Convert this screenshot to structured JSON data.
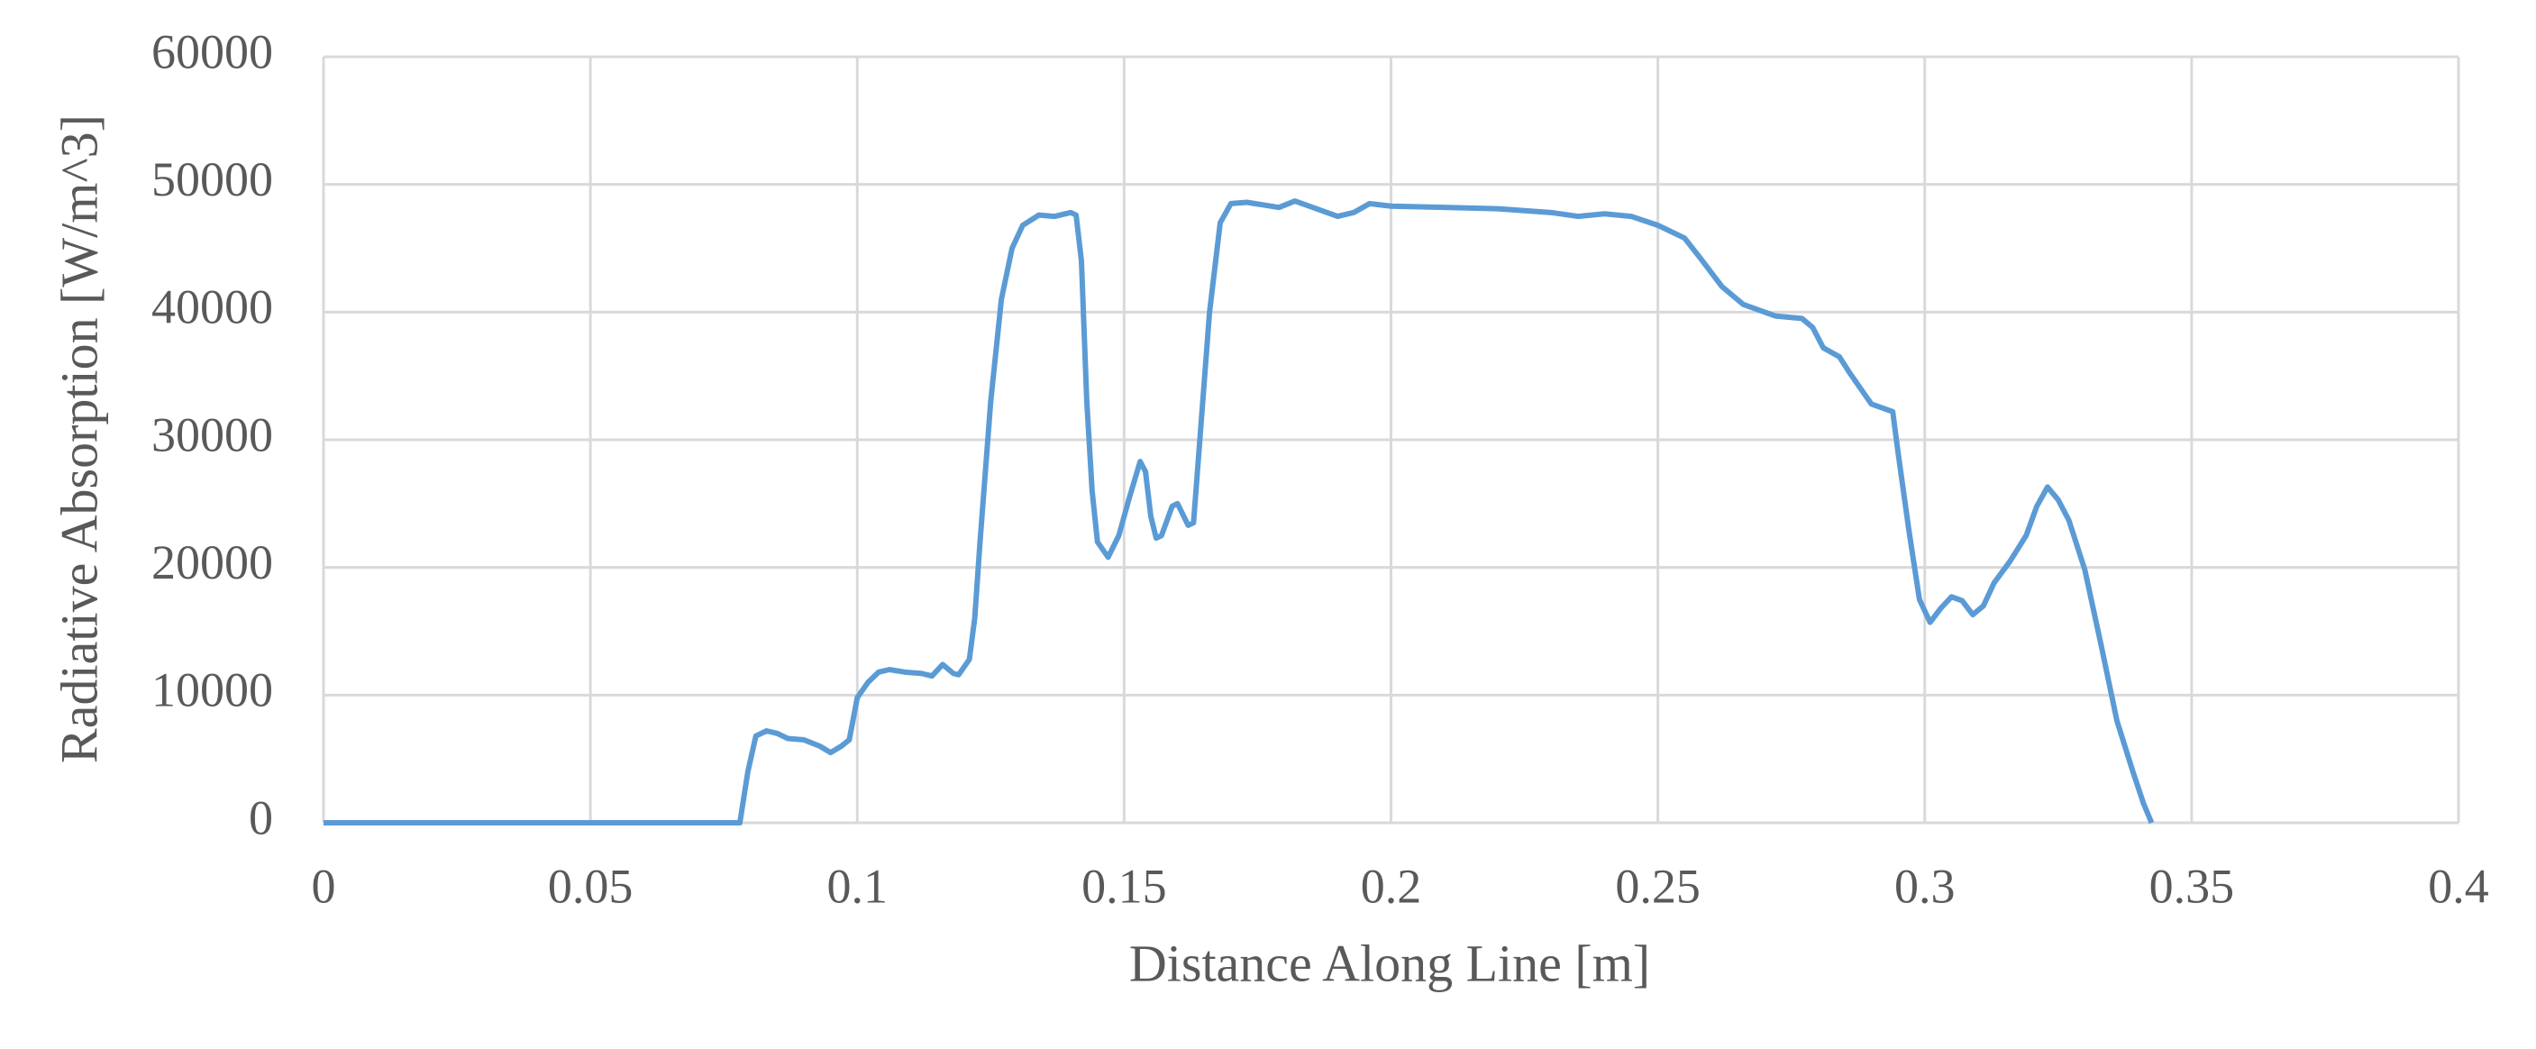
{
  "chart_data": {
    "type": "line",
    "x_label": "Distance Along Line [m]",
    "y_label": "Radiative Absorption [W/m^3]",
    "x": [
      0,
      0.078,
      0.0795,
      0.081,
      0.083,
      0.085,
      0.087,
      0.09,
      0.093,
      0.095,
      0.097,
      0.0985,
      0.1,
      0.102,
      0.104,
      0.106,
      0.109,
      0.112,
      0.114,
      0.116,
      0.118,
      0.119,
      0.121,
      0.122,
      0.123,
      0.125,
      0.127,
      0.129,
      0.131,
      0.134,
      0.137,
      0.14,
      0.141,
      0.142,
      0.143,
      0.144,
      0.145,
      0.147,
      0.149,
      0.151,
      0.153,
      0.154,
      0.155,
      0.156,
      0.157,
      0.159,
      0.16,
      0.162,
      0.163,
      0.164,
      0.166,
      0.168,
      0.17,
      0.173,
      0.176,
      0.179,
      0.182,
      0.186,
      0.19,
      0.193,
      0.196,
      0.2,
      0.21,
      0.22,
      0.23,
      0.235,
      0.24,
      0.245,
      0.25,
      0.255,
      0.258,
      0.262,
      0.266,
      0.272,
      0.277,
      0.279,
      0.281,
      0.284,
      0.286,
      0.288,
      0.29,
      0.292,
      0.294,
      0.295,
      0.297,
      0.299,
      0.301,
      0.303,
      0.305,
      0.307,
      0.309,
      0.311,
      0.313,
      0.316,
      0.319,
      0.321,
      0.323,
      0.325,
      0.327,
      0.33,
      0.333,
      0.336,
      0.339,
      0.341,
      0.3425
    ],
    "series": [
      {
        "color": "#5b9bd5",
        "values": [
          0,
          0,
          4000,
          6800,
          7200,
          7000,
          6600,
          6500,
          6000,
          5500,
          6000,
          6500,
          9800,
          11000,
          11800,
          12000,
          11800,
          11700,
          11500,
          12400,
          11700,
          11600,
          12800,
          16000,
          22000,
          33000,
          41000,
          45000,
          46800,
          47600,
          47500,
          47800,
          47600,
          44000,
          33000,
          26000,
          22000,
          20800,
          22500,
          25500,
          28300,
          27500,
          24000,
          22300,
          22500,
          24800,
          25000,
          23300,
          23500,
          29000,
          40000,
          47000,
          48500,
          48600,
          48400,
          48200,
          48700,
          48100,
          47500,
          47800,
          48500,
          48300,
          48200,
          48100,
          47800,
          47500,
          47700,
          47500,
          46800,
          45800,
          44200,
          42000,
          40600,
          39700,
          39500,
          38800,
          37200,
          36500,
          35200,
          34000,
          32800,
          32500,
          32200,
          29000,
          23000,
          17500,
          15700,
          16800,
          17700,
          17400,
          16300,
          17000,
          18800,
          20500,
          22500,
          24800,
          26300,
          25300,
          23700,
          19800,
          14000,
          8000,
          4000,
          1500,
          0
        ]
      }
    ],
    "xlim": [
      0,
      0.4
    ],
    "xticks": [
      0,
      0.05,
      0.1,
      0.15,
      0.2,
      0.25,
      0.3,
      0.35,
      0.4
    ],
    "ylim": [
      0,
      60000
    ],
    "yticks": [
      0,
      10000,
      20000,
      30000,
      40000,
      50000,
      60000
    ],
    "grid": true
  }
}
